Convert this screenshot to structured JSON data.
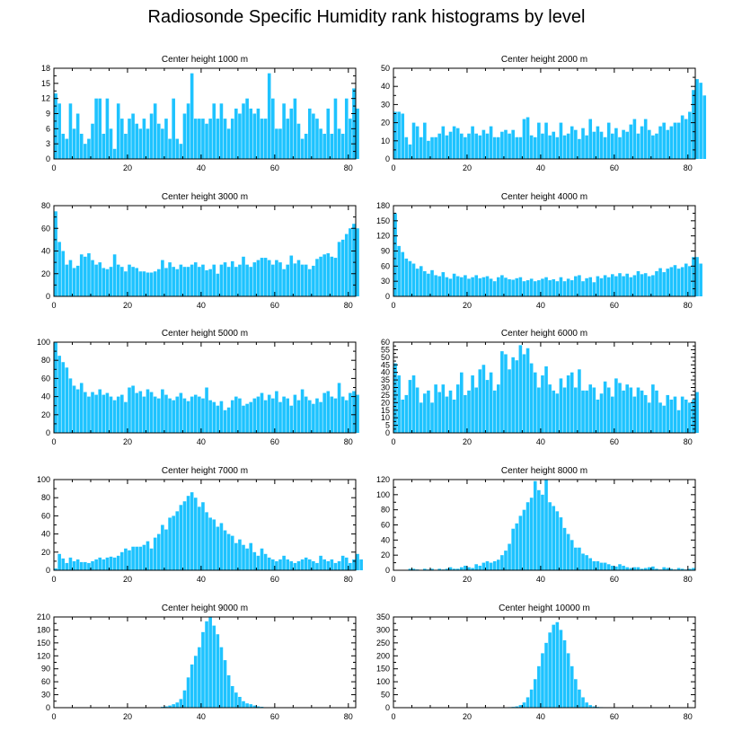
{
  "title": "Radiosonde Specific Humidity rank histograms by level",
  "bar_color": "#1ec3ff",
  "chart_data": [
    {
      "type": "bar",
      "title": "Center height 1000 m",
      "ylim": [
        0,
        18
      ],
      "yticks": [
        0,
        3,
        6,
        9,
        12,
        15,
        18
      ],
      "xticks": [
        0,
        20,
        40,
        60,
        80
      ],
      "values": [
        13,
        11,
        5,
        4,
        11,
        6,
        9,
        5,
        3,
        4,
        7,
        12,
        12,
        5,
        12,
        6,
        2,
        11,
        8,
        5,
        8,
        9,
        7,
        6,
        8,
        6,
        9,
        11,
        7,
        6,
        8,
        4,
        12,
        4,
        3,
        9,
        11,
        17,
        8,
        8,
        8,
        7,
        8,
        11,
        8,
        11,
        8,
        6,
        8,
        10,
        9,
        11,
        12,
        10,
        9,
        10,
        8,
        8,
        17,
        12,
        6,
        6,
        11,
        8,
        10,
        12,
        7,
        4,
        5,
        10,
        9,
        8,
        6,
        5,
        10,
        5,
        12,
        6,
        5,
        12,
        8,
        14,
        10
      ]
    },
    {
      "type": "bar",
      "title": "Center height 2000 m",
      "ylim": [
        0,
        50
      ],
      "yticks": [
        0,
        10,
        20,
        30,
        40,
        50
      ],
      "xticks": [
        0,
        20,
        40,
        60,
        80
      ],
      "values": [
        26,
        26,
        25,
        12,
        8,
        20,
        18,
        12,
        20,
        10,
        12,
        12,
        14,
        18,
        13,
        15,
        18,
        17,
        14,
        12,
        14,
        18,
        14,
        13,
        16,
        14,
        18,
        12,
        12,
        15,
        16,
        14,
        16,
        12,
        12,
        22,
        23,
        13,
        12,
        20,
        14,
        20,
        13,
        15,
        12,
        20,
        13,
        14,
        18,
        16,
        11,
        17,
        13,
        22,
        15,
        18,
        15,
        12,
        20,
        14,
        17,
        12,
        16,
        15,
        19,
        22,
        14,
        18,
        22,
        16,
        13,
        14,
        18,
        20,
        16,
        18,
        20,
        20,
        24,
        22,
        26,
        38,
        44,
        42,
        35
      ]
    },
    {
      "type": "bar",
      "title": "Center height 3000 m",
      "ylim": [
        0,
        80
      ],
      "yticks": [
        0,
        20,
        40,
        60,
        80
      ],
      "xticks": [
        0,
        20,
        40,
        60,
        80
      ],
      "values": [
        75,
        48,
        40,
        28,
        32,
        25,
        27,
        37,
        35,
        38,
        32,
        28,
        30,
        25,
        24,
        26,
        37,
        28,
        26,
        22,
        28,
        26,
        25,
        22,
        22,
        21,
        21,
        22,
        24,
        32,
        25,
        30,
        26,
        24,
        28,
        26,
        26,
        28,
        30,
        26,
        28,
        23,
        24,
        28,
        20,
        28,
        30,
        26,
        31,
        26,
        28,
        35,
        28,
        26,
        30,
        32,
        34,
        34,
        32,
        28,
        32,
        30,
        24,
        28,
        36,
        29,
        32,
        28,
        28,
        24,
        27,
        33,
        35,
        37,
        38,
        35,
        34,
        48,
        50,
        55,
        60,
        64,
        60
      ]
    },
    {
      "type": "bar",
      "title": "Center height 4000 m",
      "ylim": [
        0,
        180
      ],
      "yticks": [
        0,
        30,
        60,
        90,
        120,
        150,
        180
      ],
      "xticks": [
        0,
        20,
        40,
        60,
        80
      ],
      "values": [
        165,
        100,
        88,
        75,
        70,
        65,
        55,
        60,
        50,
        45,
        52,
        42,
        40,
        48,
        38,
        35,
        45,
        40,
        38,
        42,
        35,
        38,
        42,
        36,
        38,
        40,
        35,
        30,
        38,
        42,
        37,
        34,
        33,
        36,
        38,
        30,
        32,
        35,
        30,
        32,
        35,
        38,
        32,
        34,
        30,
        38,
        30,
        35,
        32,
        40,
        42,
        30,
        36,
        38,
        28,
        40,
        36,
        42,
        38,
        44,
        40,
        46,
        40,
        45,
        38,
        42,
        50,
        44,
        46,
        40,
        42,
        50,
        56,
        48,
        55,
        58,
        62,
        55,
        58,
        65,
        60,
        78,
        78,
        65
      ]
    },
    {
      "type": "bar",
      "title": "Center height 5000 m",
      "ylim": [
        0,
        100
      ],
      "yticks": [
        0,
        20,
        40,
        60,
        80,
        100
      ],
      "xticks": [
        0,
        20,
        40,
        60,
        80
      ],
      "values": [
        100,
        85,
        78,
        72,
        60,
        52,
        48,
        55,
        45,
        40,
        45,
        42,
        48,
        42,
        44,
        40,
        36,
        40,
        42,
        34,
        50,
        52,
        44,
        46,
        40,
        48,
        45,
        40,
        38,
        48,
        42,
        38,
        36,
        40,
        44,
        38,
        35,
        40,
        42,
        40,
        38,
        50,
        36,
        34,
        30,
        35,
        25,
        28,
        36,
        40,
        38,
        30,
        32,
        34,
        38,
        40,
        44,
        36,
        42,
        38,
        46,
        34,
        40,
        38,
        30,
        42,
        36,
        48,
        40,
        36,
        32,
        38,
        34,
        44,
        46,
        40,
        38,
        55,
        40,
        36,
        44,
        46,
        42
      ]
    },
    {
      "type": "bar",
      "title": "Center height 6000 m",
      "ylim": [
        0,
        60
      ],
      "yticks": [
        0,
        5,
        10,
        15,
        20,
        25,
        30,
        35,
        40,
        45,
        50,
        55,
        60
      ],
      "xticks": [
        0,
        20,
        40,
        60,
        80
      ],
      "values": [
        46,
        38,
        22,
        25,
        35,
        38,
        30,
        20,
        26,
        28,
        20,
        32,
        27,
        32,
        24,
        28,
        22,
        32,
        40,
        25,
        28,
        38,
        30,
        42,
        45,
        35,
        40,
        28,
        32,
        54,
        52,
        42,
        50,
        48,
        58,
        52,
        56,
        46,
        40,
        30,
        38,
        44,
        32,
        28,
        26,
        36,
        30,
        38,
        40,
        30,
        42,
        28,
        28,
        32,
        30,
        22,
        26,
        34,
        30,
        24,
        36,
        33,
        28,
        32,
        30,
        24,
        30,
        28,
        25,
        20,
        32,
        28,
        20,
        18,
        25,
        22,
        24,
        15,
        24,
        22,
        20,
        22,
        27
      ]
    },
    {
      "type": "bar",
      "title": "Center height 7000 m",
      "ylim": [
        0,
        100
      ],
      "yticks": [
        0,
        20,
        40,
        60,
        80,
        100
      ],
      "xticks": [
        0,
        20,
        40,
        60,
        80
      ],
      "values": [
        2,
        18,
        13,
        8,
        14,
        10,
        12,
        9,
        9,
        8,
        10,
        12,
        14,
        12,
        14,
        15,
        14,
        16,
        20,
        24,
        22,
        26,
        26,
        26,
        28,
        32,
        24,
        36,
        40,
        50,
        45,
        58,
        60,
        65,
        72,
        76,
        82,
        86,
        80,
        70,
        75,
        64,
        58,
        56,
        48,
        52,
        44,
        40,
        38,
        30,
        34,
        28,
        24,
        30,
        20,
        16,
        24,
        18,
        14,
        12,
        10,
        12,
        16,
        12,
        10,
        8,
        10,
        12,
        14,
        12,
        10,
        8,
        16,
        12,
        10,
        12,
        8,
        10,
        16,
        14,
        8,
        12,
        18,
        12
      ]
    },
    {
      "type": "bar",
      "title": "Center height 8000 m",
      "ylim": [
        0,
        120
      ],
      "yticks": [
        0,
        20,
        40,
        60,
        80,
        100,
        120
      ],
      "xticks": [
        0,
        20,
        40,
        60,
        80
      ],
      "values": [
        0,
        0,
        0,
        0,
        2,
        2,
        1,
        0,
        2,
        1,
        2,
        0,
        2,
        1,
        2,
        4,
        2,
        2,
        4,
        6,
        4,
        3,
        8,
        6,
        10,
        12,
        10,
        12,
        14,
        20,
        26,
        35,
        55,
        62,
        72,
        80,
        90,
        96,
        118,
        106,
        100,
        120,
        90,
        85,
        78,
        70,
        56,
        48,
        40,
        30,
        30,
        22,
        20,
        16,
        12,
        12,
        10,
        10,
        8,
        6,
        5,
        8,
        6,
        4,
        3,
        4,
        4,
        2,
        3,
        4,
        5,
        2,
        1,
        4,
        3,
        2,
        1,
        3,
        2,
        1,
        2,
        3,
        0
      ]
    },
    {
      "type": "bar",
      "title": "Center height 9000 m",
      "ylim": [
        0,
        210
      ],
      "yticks": [
        0,
        30,
        60,
        90,
        120,
        150,
        180,
        210
      ],
      "xticks": [
        0,
        20,
        40,
        60,
        80
      ],
      "values": [
        0,
        0,
        0,
        0,
        0,
        0,
        0,
        0,
        0,
        0,
        0,
        0,
        0,
        0,
        0,
        0,
        0,
        0,
        0,
        0,
        0,
        0,
        0,
        0,
        0,
        0,
        0,
        0,
        1,
        2,
        3,
        5,
        8,
        12,
        20,
        40,
        70,
        100,
        120,
        140,
        175,
        200,
        210,
        190,
        170,
        140,
        110,
        75,
        50,
        35,
        25,
        15,
        10,
        8,
        5,
        3,
        2,
        1,
        1,
        1,
        0,
        0,
        0,
        0,
        0,
        0,
        0,
        0,
        0,
        0,
        0,
        0,
        0,
        0,
        0,
        0,
        0,
        0,
        0,
        0,
        0,
        0,
        0
      ]
    },
    {
      "type": "bar",
      "title": "Center height 10000 m",
      "ylim": [
        0,
        350
      ],
      "yticks": [
        0,
        50,
        100,
        150,
        200,
        250,
        300,
        350
      ],
      "xticks": [
        0,
        20,
        40,
        60,
        80
      ],
      "values": [
        0,
        0,
        0,
        0,
        0,
        0,
        0,
        0,
        0,
        0,
        0,
        0,
        0,
        0,
        0,
        0,
        0,
        0,
        0,
        0,
        0,
        0,
        0,
        0,
        0,
        0,
        0,
        0,
        0,
        0,
        1,
        2,
        3,
        5,
        10,
        20,
        40,
        70,
        110,
        160,
        210,
        250,
        290,
        320,
        330,
        300,
        260,
        210,
        160,
        110,
        70,
        40,
        20,
        10,
        5,
        3,
        2,
        1,
        1,
        0,
        0,
        0,
        0,
        0,
        0,
        0,
        0,
        0,
        0,
        0,
        0,
        0,
        0,
        0,
        0,
        0,
        0,
        0,
        0,
        0,
        0,
        0,
        0
      ]
    }
  ]
}
